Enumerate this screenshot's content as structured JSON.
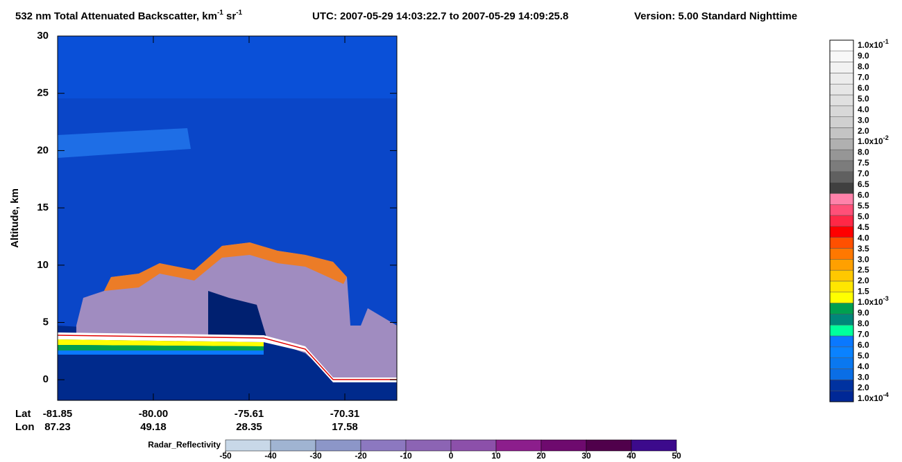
{
  "chart_data": {
    "type": "curtain",
    "title_segments": [
      "532 nm Total Attenuated Backscatter, km",
      "-1",
      " sr",
      "-1",
      "UTC:  2007-05-29 14:03:22.7  to  2007-05-29 14:09:25.8",
      "Version: 5.00  Standard  Nighttime"
    ],
    "ylabel": "Altitude, km",
    "ylim": [
      -1.8,
      30
    ],
    "yticks": [
      0,
      5,
      10,
      15,
      20,
      25,
      30
    ],
    "x_row_labels": [
      "Lat",
      "Lon"
    ],
    "x_ticks": [
      {
        "lat": "-81.85",
        "lon": "87.23"
      },
      {
        "lat": "-80.00",
        "lon": "49.18"
      },
      {
        "lat": "-75.61",
        "lon": "28.35"
      },
      {
        "lat": "-70.31",
        "lon": "17.58"
      }
    ],
    "backscatter_colorbar": {
      "labels": [
        {
          "base": "1.0x10",
          "exp": "-1"
        },
        "9.0",
        "8.0",
        "7.0",
        "6.0",
        "5.0",
        "4.0",
        "3.0",
        "2.0",
        {
          "base": "1.0x10",
          "exp": "-2"
        },
        "8.0",
        "7.5",
        "7.0",
        "6.5",
        "6.0",
        "5.5",
        "5.0",
        "4.5",
        "4.0",
        "3.5",
        "3.0",
        "2.5",
        "2.0",
        "1.5",
        {
          "base": "1.0x10",
          "exp": "-3"
        },
        "9.0",
        "8.0",
        "7.0",
        "6.0",
        "5.0",
        "4.0",
        "3.0",
        "2.0",
        {
          "base": "1.0x10",
          "exp": "-4"
        }
      ],
      "colors": [
        "#ffffff",
        "#f8f8f8",
        "#f2f2f2",
        "#ececec",
        "#e6e6e6",
        "#e0e0e0",
        "#d8d8d8",
        "#d0d0d0",
        "#c4c4c4",
        "#b0b0b0",
        "#969696",
        "#7c7c7c",
        "#606060",
        "#404040",
        "#ff82aa",
        "#ff5078",
        "#ff2846",
        "#ff0000",
        "#ff5000",
        "#ff7800",
        "#ffa000",
        "#ffc800",
        "#ffe600",
        "#ffff00",
        "#00a050",
        "#00877a",
        "#00ff9c",
        "#0a78ff",
        "#0a82ff",
        "#0a78f0",
        "#0a6ee6",
        "#0032a0",
        "#002896"
      ]
    },
    "radar_colorbar": {
      "label": "Radar_Reflectivity",
      "ticks": [
        -50,
        -40,
        -30,
        -20,
        -10,
        0,
        10,
        20,
        30,
        40,
        50
      ],
      "colors": [
        "#c8d8e8",
        "#a0b4d2",
        "#8c96c8",
        "#8c78c0",
        "#8c64b4",
        "#8c50aa",
        "#8c1e8c",
        "#6e0a6e",
        "#50004b",
        "#3c0a8c"
      ]
    }
  }
}
